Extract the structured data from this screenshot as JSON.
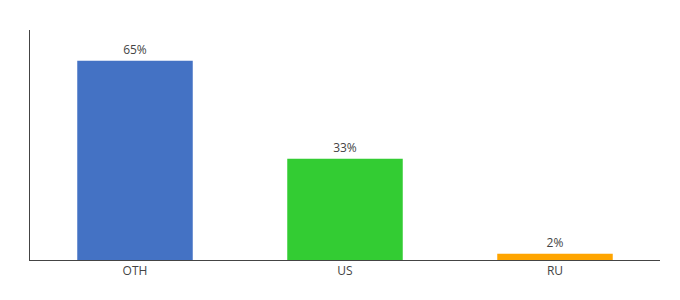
{
  "chart_data": {
    "type": "bar",
    "categories": [
      "OTH",
      "US",
      "RU"
    ],
    "values": [
      65,
      33,
      2
    ],
    "value_labels": [
      "65%",
      "33%",
      "2%"
    ],
    "colors": [
      "#4472C4",
      "#33CC33",
      "#FFA500"
    ],
    "ylim": [
      0,
      75
    ],
    "data_labels": true,
    "tick_labels": "x",
    "grid": false
  }
}
